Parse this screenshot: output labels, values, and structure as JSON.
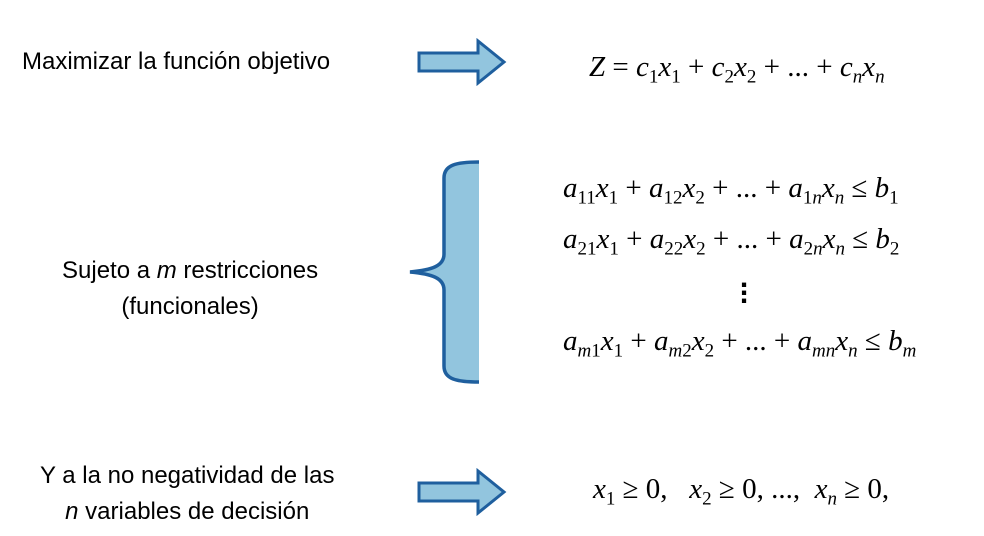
{
  "objective": {
    "label": "Maximizar la función objetivo",
    "equation": {
      "lhs": "Z",
      "terms": [
        "c1x1",
        "c2x2",
        "...",
        "cnxn"
      ]
    }
  },
  "constraints": {
    "label_pre": "Sujeto a",
    "label_var": "m",
    "label_post": "restricciones",
    "label_line2": "(funcionales)",
    "rows": [
      "a11x1 + a12x2 + ... + a1nxn ≤ b1",
      "a21x1 + a22x2 + ... + a2nxn ≤ b2",
      "am1x1 + am2x2 + ... + amnxn ≤ bm"
    ],
    "ellipsis": "⋮"
  },
  "nonnegativity": {
    "label_line1": "Y a la no negatividad de las",
    "label_var": "n",
    "label_line2_rest": "variables de decisión",
    "equation": "x1 ≥ 0,   x2 ≥ 0, ...,  xn ≥ 0,"
  },
  "colors": {
    "shape_fill": "#92c5de",
    "shape_stroke": "#1f5f9e"
  }
}
